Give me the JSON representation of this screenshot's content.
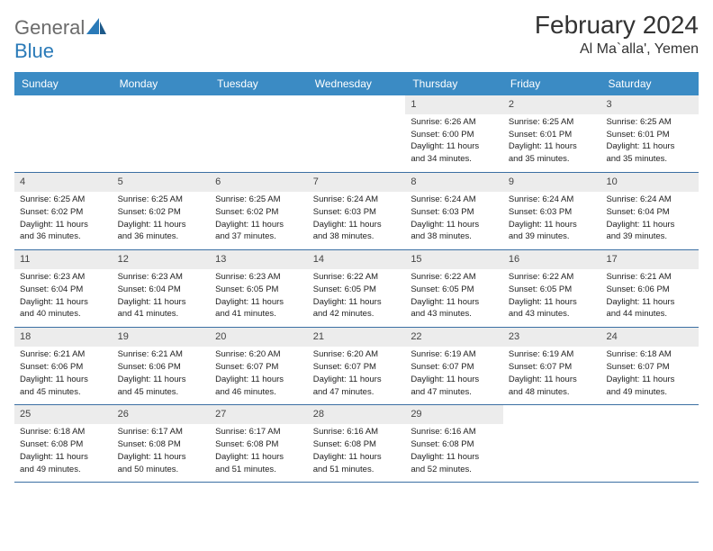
{
  "logo": {
    "general": "General",
    "blue": "Blue"
  },
  "header": {
    "month": "February 2024",
    "location": "Al Ma`alla', Yemen"
  },
  "weekdays": [
    "Sunday",
    "Monday",
    "Tuesday",
    "Wednesday",
    "Thursday",
    "Friday",
    "Saturday"
  ],
  "colors": {
    "header_bar": "#3b8bc4",
    "row_divider": "#3b6fa3",
    "daynum_bg": "#ececec",
    "logo_gray": "#6b6b6b",
    "logo_blue": "#2a7ab8"
  },
  "weeks": [
    [
      null,
      null,
      null,
      null,
      {
        "n": "1",
        "sunrise": "Sunrise: 6:26 AM",
        "sunset": "Sunset: 6:00 PM",
        "d1": "Daylight: 11 hours",
        "d2": "and 34 minutes."
      },
      {
        "n": "2",
        "sunrise": "Sunrise: 6:25 AM",
        "sunset": "Sunset: 6:01 PM",
        "d1": "Daylight: 11 hours",
        "d2": "and 35 minutes."
      },
      {
        "n": "3",
        "sunrise": "Sunrise: 6:25 AM",
        "sunset": "Sunset: 6:01 PM",
        "d1": "Daylight: 11 hours",
        "d2": "and 35 minutes."
      }
    ],
    [
      {
        "n": "4",
        "sunrise": "Sunrise: 6:25 AM",
        "sunset": "Sunset: 6:02 PM",
        "d1": "Daylight: 11 hours",
        "d2": "and 36 minutes."
      },
      {
        "n": "5",
        "sunrise": "Sunrise: 6:25 AM",
        "sunset": "Sunset: 6:02 PM",
        "d1": "Daylight: 11 hours",
        "d2": "and 36 minutes."
      },
      {
        "n": "6",
        "sunrise": "Sunrise: 6:25 AM",
        "sunset": "Sunset: 6:02 PM",
        "d1": "Daylight: 11 hours",
        "d2": "and 37 minutes."
      },
      {
        "n": "7",
        "sunrise": "Sunrise: 6:24 AM",
        "sunset": "Sunset: 6:03 PM",
        "d1": "Daylight: 11 hours",
        "d2": "and 38 minutes."
      },
      {
        "n": "8",
        "sunrise": "Sunrise: 6:24 AM",
        "sunset": "Sunset: 6:03 PM",
        "d1": "Daylight: 11 hours",
        "d2": "and 38 minutes."
      },
      {
        "n": "9",
        "sunrise": "Sunrise: 6:24 AM",
        "sunset": "Sunset: 6:03 PM",
        "d1": "Daylight: 11 hours",
        "d2": "and 39 minutes."
      },
      {
        "n": "10",
        "sunrise": "Sunrise: 6:24 AM",
        "sunset": "Sunset: 6:04 PM",
        "d1": "Daylight: 11 hours",
        "d2": "and 39 minutes."
      }
    ],
    [
      {
        "n": "11",
        "sunrise": "Sunrise: 6:23 AM",
        "sunset": "Sunset: 6:04 PM",
        "d1": "Daylight: 11 hours",
        "d2": "and 40 minutes."
      },
      {
        "n": "12",
        "sunrise": "Sunrise: 6:23 AM",
        "sunset": "Sunset: 6:04 PM",
        "d1": "Daylight: 11 hours",
        "d2": "and 41 minutes."
      },
      {
        "n": "13",
        "sunrise": "Sunrise: 6:23 AM",
        "sunset": "Sunset: 6:05 PM",
        "d1": "Daylight: 11 hours",
        "d2": "and 41 minutes."
      },
      {
        "n": "14",
        "sunrise": "Sunrise: 6:22 AM",
        "sunset": "Sunset: 6:05 PM",
        "d1": "Daylight: 11 hours",
        "d2": "and 42 minutes."
      },
      {
        "n": "15",
        "sunrise": "Sunrise: 6:22 AM",
        "sunset": "Sunset: 6:05 PM",
        "d1": "Daylight: 11 hours",
        "d2": "and 43 minutes."
      },
      {
        "n": "16",
        "sunrise": "Sunrise: 6:22 AM",
        "sunset": "Sunset: 6:05 PM",
        "d1": "Daylight: 11 hours",
        "d2": "and 43 minutes."
      },
      {
        "n": "17",
        "sunrise": "Sunrise: 6:21 AM",
        "sunset": "Sunset: 6:06 PM",
        "d1": "Daylight: 11 hours",
        "d2": "and 44 minutes."
      }
    ],
    [
      {
        "n": "18",
        "sunrise": "Sunrise: 6:21 AM",
        "sunset": "Sunset: 6:06 PM",
        "d1": "Daylight: 11 hours",
        "d2": "and 45 minutes."
      },
      {
        "n": "19",
        "sunrise": "Sunrise: 6:21 AM",
        "sunset": "Sunset: 6:06 PM",
        "d1": "Daylight: 11 hours",
        "d2": "and 45 minutes."
      },
      {
        "n": "20",
        "sunrise": "Sunrise: 6:20 AM",
        "sunset": "Sunset: 6:07 PM",
        "d1": "Daylight: 11 hours",
        "d2": "and 46 minutes."
      },
      {
        "n": "21",
        "sunrise": "Sunrise: 6:20 AM",
        "sunset": "Sunset: 6:07 PM",
        "d1": "Daylight: 11 hours",
        "d2": "and 47 minutes."
      },
      {
        "n": "22",
        "sunrise": "Sunrise: 6:19 AM",
        "sunset": "Sunset: 6:07 PM",
        "d1": "Daylight: 11 hours",
        "d2": "and 47 minutes."
      },
      {
        "n": "23",
        "sunrise": "Sunrise: 6:19 AM",
        "sunset": "Sunset: 6:07 PM",
        "d1": "Daylight: 11 hours",
        "d2": "and 48 minutes."
      },
      {
        "n": "24",
        "sunrise": "Sunrise: 6:18 AM",
        "sunset": "Sunset: 6:07 PM",
        "d1": "Daylight: 11 hours",
        "d2": "and 49 minutes."
      }
    ],
    [
      {
        "n": "25",
        "sunrise": "Sunrise: 6:18 AM",
        "sunset": "Sunset: 6:08 PM",
        "d1": "Daylight: 11 hours",
        "d2": "and 49 minutes."
      },
      {
        "n": "26",
        "sunrise": "Sunrise: 6:17 AM",
        "sunset": "Sunset: 6:08 PM",
        "d1": "Daylight: 11 hours",
        "d2": "and 50 minutes."
      },
      {
        "n": "27",
        "sunrise": "Sunrise: 6:17 AM",
        "sunset": "Sunset: 6:08 PM",
        "d1": "Daylight: 11 hours",
        "d2": "and 51 minutes."
      },
      {
        "n": "28",
        "sunrise": "Sunrise: 6:16 AM",
        "sunset": "Sunset: 6:08 PM",
        "d1": "Daylight: 11 hours",
        "d2": "and 51 minutes."
      },
      {
        "n": "29",
        "sunrise": "Sunrise: 6:16 AM",
        "sunset": "Sunset: 6:08 PM",
        "d1": "Daylight: 11 hours",
        "d2": "and 52 minutes."
      },
      null,
      null
    ]
  ]
}
